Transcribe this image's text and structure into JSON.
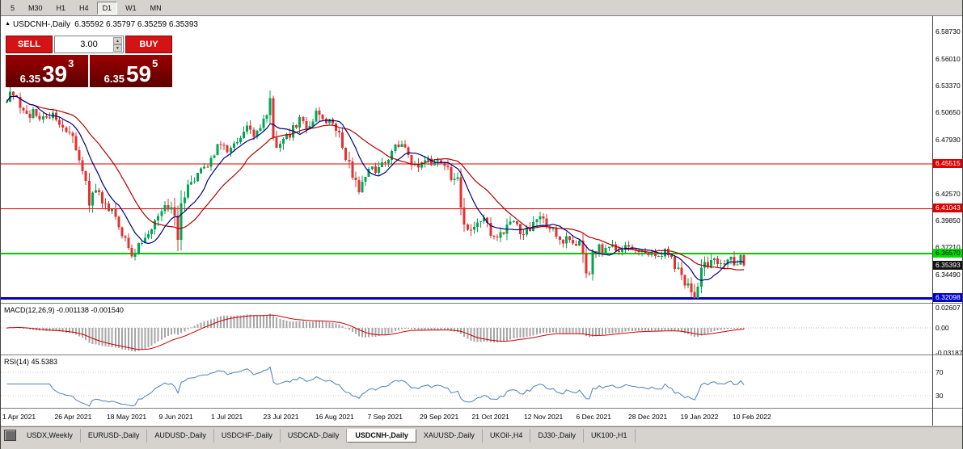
{
  "toolbar": {
    "timeframes": [
      "5",
      "M30",
      "H1",
      "H4",
      "D1",
      "W1",
      "MN"
    ],
    "active": "D1"
  },
  "chart": {
    "title_symbol": "USDCNH-,Daily",
    "ohlc": "6.35592 6.35797 6.35259 6.35393",
    "collapse_icon": "▲",
    "trade_panel": {
      "sell_label": "SELL",
      "buy_label": "BUY",
      "spread": "3.00",
      "sell_price": {
        "base": "6.35",
        "main": "39",
        "sup": "3"
      },
      "buy_price": {
        "base": "6.35",
        "main": "59",
        "sup": "5"
      }
    }
  },
  "price_scale": {
    "ticks": [
      "6.58730",
      "6.56010",
      "6.53370",
      "6.50650",
      "6.47930",
      "6.42570",
      "6.39850",
      "6.37210",
      "6.34490"
    ],
    "level_labels": [
      {
        "text": "6.45515",
        "price": 6.45515,
        "bg": "#dd0000",
        "fg": "#ffffff"
      },
      {
        "text": "6.41043",
        "price": 6.41043,
        "bg": "#dd0000",
        "fg": "#ffffff"
      },
      {
        "text": "6.36570",
        "price": 6.3657,
        "bg": "#00dd00",
        "fg": "#000000"
      },
      {
        "text": "6.35393",
        "price": 6.35393,
        "bg": "#111111",
        "fg": "#ffffff"
      },
      {
        "text": "6.32098",
        "price": 6.32098,
        "bg": "#0000cd",
        "fg": "#ffffff"
      }
    ]
  },
  "macd": {
    "label": "MACD(12,26,9) -0.001138 -0.001540",
    "scale": [
      "0.02607",
      "0.00",
      "-0.03187"
    ]
  },
  "rsi": {
    "label": "RSI(14) 45.5383",
    "scale": [
      "70",
      "30"
    ]
  },
  "time_axis": [
    "1 Apr 2021",
    "26 Apr 2021",
    "18 May 2021",
    "9 Jun 2021",
    "1 Jul 2021",
    "23 Jul 2021",
    "16 Aug 2021",
    "7 Sep 2021",
    "29 Sep 2021",
    "21 Oct 2021",
    "12 Nov 2021",
    "6 Dec 2021",
    "28 Dec 2021",
    "19 Jan 2022",
    "10 Feb 2022"
  ],
  "tabs": {
    "items": [
      "USDX,Weekly",
      "EURUSD-,Daily",
      "AUDUSD-,Daily",
      "USDCHF-,Daily",
      "USDCAD-,Daily",
      "USDCNH-,Daily",
      "XAUUSD-,Daily",
      "UKOil-,H4",
      "DJ30-,Daily",
      "UK100-,H1"
    ],
    "active_index": 5
  },
  "chart_data": {
    "type": "candlestick",
    "symbol": "USDCNH",
    "period": "Daily",
    "current_bar": {
      "open": 6.35592,
      "high": 6.35797,
      "low": 6.35259,
      "close": 6.35393
    },
    "num_candles": 225,
    "last_close": 6.35393,
    "x_range": [
      "1 Apr 2021",
      "10 Feb 2022"
    ],
    "y_range": [
      6.317,
      6.599
    ],
    "levels": [
      {
        "price": 6.45515,
        "color": "#dd0000",
        "width": 1
      },
      {
        "price": 6.41043,
        "color": "#dd0000",
        "width": 1
      },
      {
        "price": 6.3657,
        "color": "#00cc00",
        "width": 2
      },
      {
        "price": 6.32098,
        "color": "#0000bb",
        "width": 3
      }
    ],
    "colors": {
      "up": "#00a651",
      "down": "#e53030",
      "ma_fast": "#000080",
      "ma_slow": "#b00000",
      "macd_hist": "#a6a6a6",
      "macd_signal": "#cc0000",
      "rsi": "#4a7fc1"
    },
    "indicators": {
      "ma_fast_period": 9,
      "ma_slow_period": 21,
      "macd": {
        "fast": 12,
        "slow": 26,
        "signal": 9,
        "value": -0.001138,
        "signal_value": -0.00154
      },
      "rsi": {
        "period": 14,
        "value": 45.5383
      },
      "macd_scale_values": [
        0.02607,
        0.0,
        -0.03187
      ],
      "rsi_levels": [
        70,
        30
      ]
    },
    "price_anchors": [
      [
        0,
        6.52,
        0.009
      ],
      [
        2,
        6.528,
        0.01
      ],
      [
        4,
        6.512,
        0.009
      ],
      [
        6,
        6.503,
        0.008
      ],
      [
        8,
        6.508,
        0.008
      ],
      [
        10,
        6.5,
        0.008
      ],
      [
        12,
        6.498,
        0.008
      ],
      [
        14,
        6.503,
        0.008
      ],
      [
        16,
        6.495,
        0.008
      ],
      [
        18,
        6.488,
        0.009
      ],
      [
        20,
        6.478,
        0.01
      ],
      [
        22,
        6.462,
        0.012
      ],
      [
        24,
        6.43,
        0.016
      ],
      [
        25,
        6.412,
        0.014
      ],
      [
        27,
        6.428,
        0.01
      ],
      [
        29,
        6.42,
        0.009
      ],
      [
        31,
        6.412,
        0.01
      ],
      [
        33,
        6.4,
        0.011
      ],
      [
        35,
        6.385,
        0.012
      ],
      [
        37,
        6.368,
        0.012
      ],
      [
        38,
        6.362,
        0.01
      ],
      [
        40,
        6.376,
        0.009
      ],
      [
        42,
        6.385,
        0.008
      ],
      [
        44,
        6.392,
        0.008
      ],
      [
        46,
        6.403,
        0.009
      ],
      [
        48,
        6.41,
        0.009
      ],
      [
        50,
        6.415,
        0.01
      ],
      [
        51,
        6.402,
        0.016
      ],
      [
        52,
        6.385,
        0.018
      ],
      [
        53,
        6.42,
        0.02
      ],
      [
        55,
        6.428,
        0.012
      ],
      [
        57,
        6.438,
        0.009
      ],
      [
        59,
        6.448,
        0.008
      ],
      [
        61,
        6.455,
        0.008
      ],
      [
        63,
        6.465,
        0.008
      ],
      [
        65,
        6.478,
        0.008
      ],
      [
        67,
        6.47,
        0.008
      ],
      [
        69,
        6.478,
        0.008
      ],
      [
        71,
        6.483,
        0.008
      ],
      [
        73,
        6.49,
        0.008
      ],
      [
        75,
        6.485,
        0.008
      ],
      [
        77,
        6.495,
        0.009
      ],
      [
        79,
        6.505,
        0.014
      ],
      [
        80,
        6.512,
        0.02
      ],
      [
        81,
        6.48,
        0.014
      ],
      [
        83,
        6.47,
        0.01
      ],
      [
        85,
        6.48,
        0.009
      ],
      [
        87,
        6.49,
        0.008
      ],
      [
        89,
        6.498,
        0.008
      ],
      [
        91,
        6.492,
        0.008
      ],
      [
        93,
        6.5,
        0.009
      ],
      [
        95,
        6.508,
        0.01
      ],
      [
        97,
        6.498,
        0.009
      ],
      [
        99,
        6.492,
        0.009
      ],
      [
        101,
        6.482,
        0.01
      ],
      [
        103,
        6.462,
        0.012
      ],
      [
        105,
        6.442,
        0.012
      ],
      [
        107,
        6.425,
        0.012
      ],
      [
        109,
        6.445,
        0.011
      ],
      [
        111,
        6.452,
        0.009
      ],
      [
        113,
        6.448,
        0.008
      ],
      [
        115,
        6.458,
        0.008
      ],
      [
        117,
        6.468,
        0.008
      ],
      [
        119,
        6.475,
        0.008
      ],
      [
        121,
        6.468,
        0.008
      ],
      [
        123,
        6.458,
        0.008
      ],
      [
        125,
        6.452,
        0.008
      ],
      [
        127,
        6.46,
        0.008
      ],
      [
        129,
        6.455,
        0.008
      ],
      [
        131,
        6.462,
        0.008
      ],
      [
        133,
        6.452,
        0.009
      ],
      [
        135,
        6.442,
        0.01
      ],
      [
        137,
        6.438,
        0.012
      ],
      [
        138,
        6.42,
        0.016
      ],
      [
        139,
        6.395,
        0.016
      ],
      [
        141,
        6.385,
        0.01
      ],
      [
        143,
        6.392,
        0.009
      ],
      [
        145,
        6.398,
        0.009
      ],
      [
        147,
        6.388,
        0.009
      ],
      [
        149,
        6.38,
        0.008
      ],
      [
        151,
        6.39,
        0.009
      ],
      [
        153,
        6.398,
        0.009
      ],
      [
        155,
        6.392,
        0.008
      ],
      [
        157,
        6.386,
        0.008
      ],
      [
        159,
        6.392,
        0.008
      ],
      [
        161,
        6.396,
        0.009
      ],
      [
        163,
        6.4,
        0.009
      ],
      [
        165,
        6.392,
        0.008
      ],
      [
        167,
        6.384,
        0.008
      ],
      [
        169,
        6.378,
        0.008
      ],
      [
        171,
        6.382,
        0.008
      ],
      [
        173,
        6.375,
        0.008
      ],
      [
        175,
        6.372,
        0.014
      ],
      [
        176,
        6.352,
        0.016
      ],
      [
        177,
        6.348,
        0.012
      ],
      [
        178,
        6.365,
        0.01
      ],
      [
        180,
        6.372,
        0.008
      ],
      [
        182,
        6.368,
        0.007
      ],
      [
        184,
        6.373,
        0.007
      ],
      [
        186,
        6.368,
        0.007
      ],
      [
        188,
        6.372,
        0.007
      ],
      [
        190,
        6.367,
        0.007
      ],
      [
        192,
        6.371,
        0.007
      ],
      [
        194,
        6.365,
        0.007
      ],
      [
        196,
        6.37,
        0.007
      ],
      [
        198,
        6.363,
        0.007
      ],
      [
        200,
        6.368,
        0.007
      ],
      [
        202,
        6.36,
        0.008
      ],
      [
        204,
        6.35,
        0.01
      ],
      [
        206,
        6.34,
        0.012
      ],
      [
        208,
        6.33,
        0.014
      ],
      [
        209,
        6.324,
        0.014
      ],
      [
        211,
        6.348,
        0.016
      ],
      [
        213,
        6.356,
        0.009
      ],
      [
        215,
        6.36,
        0.008
      ],
      [
        217,
        6.353,
        0.008
      ],
      [
        219,
        6.363,
        0.008
      ],
      [
        221,
        6.356,
        0.008
      ],
      [
        223,
        6.361,
        0.007
      ],
      [
        224,
        6.35393,
        0.006
      ]
    ]
  }
}
